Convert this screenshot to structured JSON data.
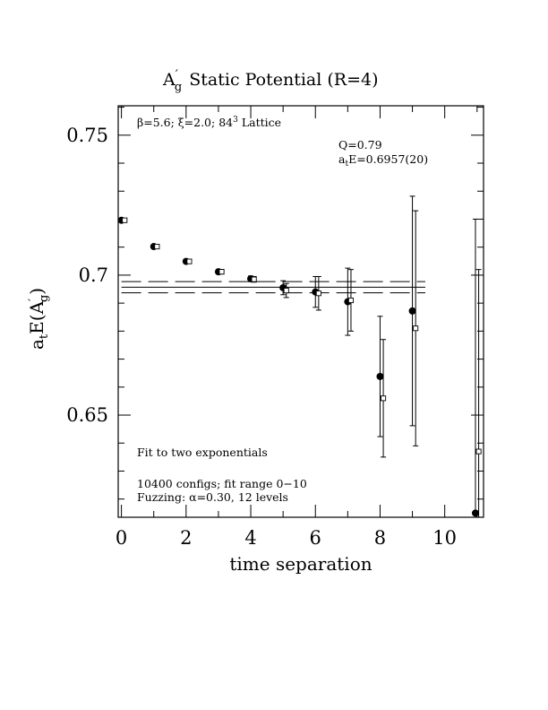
{
  "chart_data": {
    "type": "scatter",
    "title": {
      "main": "A",
      "prime": "′",
      "sub": "g",
      "rest": "Static Potential (R=4)"
    },
    "xlabel": "time separation",
    "ylabel": {
      "pre": "a",
      "t": "t",
      "mid": "E(A",
      "prime": "′",
      "g": "g",
      "close": ")"
    },
    "xlim": [
      -0.1,
      11.2
    ],
    "ylim": [
      0.6135,
      0.7605
    ],
    "x_ticks": [
      0,
      2,
      4,
      6,
      8,
      10
    ],
    "x_tick_labels": [
      "0",
      "2",
      "4",
      "6",
      "8",
      "10"
    ],
    "y_ticks": [
      0.65,
      0.7,
      0.75
    ],
    "y_tick_labels": [
      "0.65",
      "0.7",
      "0.75"
    ],
    "annotations": {
      "lattice": {
        "beta": "β=5.6; ",
        "xi": "ξ=2.0; ",
        "size": "84",
        "sup": "3",
        "end": " Lattice"
      },
      "q": "Q=0.79",
      "energy": {
        "a": "a",
        "t": "t",
        "rest": "E=0.6957(20)"
      },
      "fit": "Fit to two exponentials",
      "configs": "10400 configs; fit range 0−10",
      "fuzzing": "Fuzzing: α=0.30, 12 levels"
    },
    "fit": {
      "value": 0.6957,
      "error": 0.002,
      "x_range": [
        0,
        9.4
      ]
    },
    "series": [
      {
        "marker": "filled-circle",
        "points": [
          {
            "x": 0,
            "y": 0.7196,
            "err": 0.0005
          },
          {
            "x": 1,
            "y": 0.7102,
            "err": 0.0006
          },
          {
            "x": 2,
            "y": 0.7049,
            "err": 0.0007
          },
          {
            "x": 3,
            "y": 0.7012,
            "err": 0.0008
          },
          {
            "x": 4,
            "y": 0.6987,
            "err": 0.001
          },
          {
            "x": 5,
            "y": 0.6955,
            "err": 0.0025
          },
          {
            "x": 6,
            "y": 0.694,
            "err": 0.0055
          },
          {
            "x": 7,
            "y": 0.6905,
            "err": 0.012
          },
          {
            "x": 8,
            "y": 0.6638,
            "err": 0.0215
          },
          {
            "x": 9,
            "y": 0.6872,
            "err": 0.041
          },
          {
            "x": 10.95,
            "y": 0.615,
            "err": 0.105
          }
        ]
      },
      {
        "marker": "open-square",
        "points": [
          {
            "x": 0.1,
            "y": 0.7196,
            "err": 0.0005
          },
          {
            "x": 1.1,
            "y": 0.7102,
            "err": 0.0006
          },
          {
            "x": 2.1,
            "y": 0.7049,
            "err": 0.0007
          },
          {
            "x": 3.1,
            "y": 0.7012,
            "err": 0.0008
          },
          {
            "x": 4.1,
            "y": 0.6985,
            "err": 0.001
          },
          {
            "x": 5.1,
            "y": 0.6945,
            "err": 0.0025
          },
          {
            "x": 6.1,
            "y": 0.6935,
            "err": 0.006
          },
          {
            "x": 7.1,
            "y": 0.691,
            "err": 0.011
          },
          {
            "x": 8.1,
            "y": 0.656,
            "err": 0.021
          },
          {
            "x": 9.1,
            "y": 0.681,
            "err": 0.042
          },
          {
            "x": 11.05,
            "y": 0.637,
            "err": 0.065
          }
        ]
      }
    ]
  }
}
